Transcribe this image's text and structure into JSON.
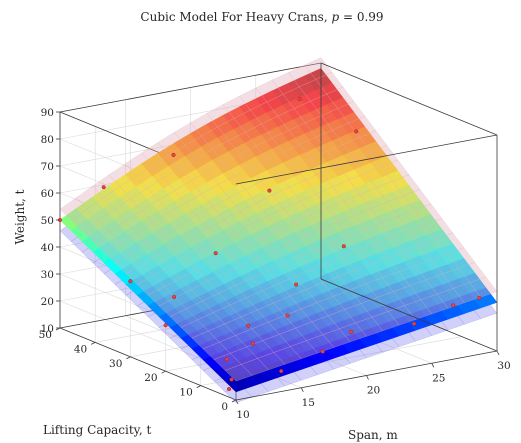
{
  "chart_data": {
    "type": "surface3d",
    "title": "Cubic Model For Heavy Crans, p = 0.99",
    "title_text": "Cubic Model For Heavy Crans, ",
    "title_param": "p",
    "title_value": " = 0.99",
    "xlabel": "Span, m",
    "ylabel": "Lifting Capacity, t",
    "zlabel": "Weight, t",
    "xlim": [
      10,
      30
    ],
    "ylim": [
      0,
      50
    ],
    "zlim": [
      10,
      90
    ],
    "xticks": [
      "10",
      "15",
      "20",
      "25",
      "30"
    ],
    "yticks": [
      "0",
      "10",
      "20",
      "30",
      "40",
      "50"
    ],
    "zticks": [
      "10",
      "20",
      "30",
      "40",
      "50",
      "60",
      "70",
      "80",
      "90"
    ],
    "grid": true,
    "colormap": "jet",
    "surface_corners": {
      "span_10_cap_0": 13,
      "span_30_cap_0": 28,
      "span_10_cap_50": 50,
      "span_30_cap_50": 88
    },
    "observations": [
      {
        "span": 10,
        "capacity": 50,
        "weight": 50
      },
      {
        "span": 12,
        "capacity": 45,
        "weight": 63
      },
      {
        "span": 16,
        "capacity": 40,
        "weight": 74
      },
      {
        "span": 10,
        "capacity": 30,
        "weight": 38
      },
      {
        "span": 12,
        "capacity": 25,
        "weight": 33
      },
      {
        "span": 10,
        "capacity": 20,
        "weight": 27
      },
      {
        "span": 12,
        "capacity": 10,
        "weight": 18
      },
      {
        "span": 11,
        "capacity": 5,
        "weight": 14
      },
      {
        "span": 10,
        "capacity": 2,
        "weight": 13
      },
      {
        "span": 14,
        "capacity": 2,
        "weight": 16
      },
      {
        "span": 18,
        "capacity": 5,
        "weight": 18
      },
      {
        "span": 21,
        "capacity": 8,
        "weight": 21
      },
      {
        "span": 25,
        "capacity": 5,
        "weight": 22
      },
      {
        "span": 28,
        "capacity": 5,
        "weight": 26
      },
      {
        "span": 30,
        "capacity": 5,
        "weight": 27
      },
      {
        "span": 15,
        "capacity": 15,
        "weight": 25
      },
      {
        "span": 20,
        "capacity": 20,
        "weight": 33
      },
      {
        "span": 25,
        "capacity": 25,
        "weight": 40
      },
      {
        "span": 16,
        "capacity": 28,
        "weight": 44
      },
      {
        "span": 22,
        "capacity": 35,
        "weight": 58
      },
      {
        "span": 27,
        "capacity": 45,
        "weight": 82
      },
      {
        "span": 30,
        "capacity": 40,
        "weight": 70
      },
      {
        "span": 14,
        "capacity": 10,
        "weight": 22
      },
      {
        "span": 18,
        "capacity": 15,
        "weight": 26
      }
    ]
  }
}
